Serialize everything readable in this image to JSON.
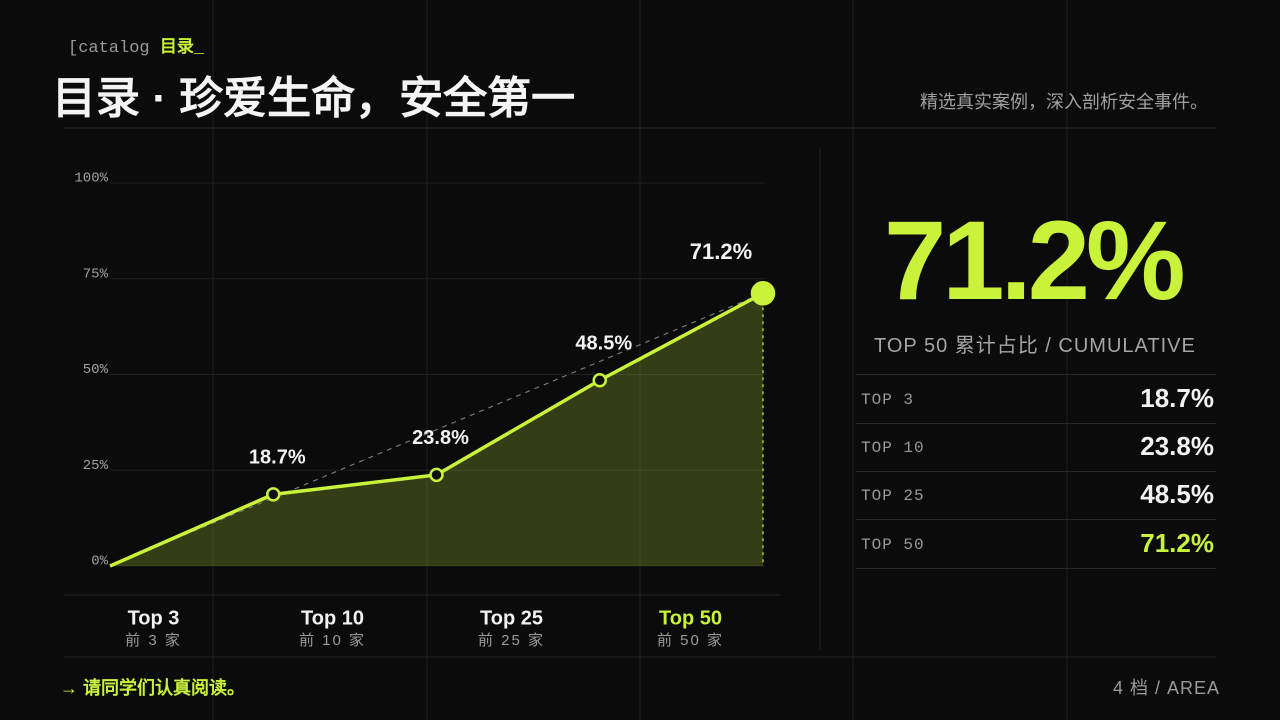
{
  "header": {
    "tag": "[catalog ",
    "tag_accent": "目录_",
    "title": "目录 · 珍爱生命，安全第一",
    "subtitle": "精选真实案例，深入剖析安全事件。"
  },
  "chart_data": {
    "type": "area",
    "categories": [
      null,
      "Top 3",
      "Top 10",
      "Top 25",
      "Top 50"
    ],
    "category_sublabels": [
      null,
      "前 3 家",
      "前 10 家",
      "前 25 家",
      "前 50 家"
    ],
    "values": [
      0,
      18.7,
      23.8,
      48.5,
      71.2
    ],
    "value_labels": [
      null,
      "18.7%",
      "23.8%",
      "48.5%",
      "71.2%"
    ],
    "color": "#c9f23b",
    "ylim": [
      0,
      100
    ],
    "yticks": [
      {
        "value": 0,
        "label": "0%"
      },
      {
        "value": 25,
        "label": "25%"
      },
      {
        "value": 50,
        "label": "50%"
      },
      {
        "value": 75,
        "label": "75%"
      },
      {
        "value": 100,
        "label": "100%"
      }
    ],
    "grid": true
  },
  "summary": {
    "value": "71.2%",
    "caption": "TOP 50  累计占比  / CUMULATIVE",
    "rows": [
      [
        "TOP 3",
        "18.7%"
      ],
      [
        "TOP 10",
        "23.8%"
      ],
      [
        "TOP 25",
        "48.5%"
      ],
      [
        "TOP 50",
        "71.2%"
      ]
    ]
  },
  "footer": {
    "note": "→ 请同学们认真阅读。",
    "page": "4 档 / AREA"
  }
}
